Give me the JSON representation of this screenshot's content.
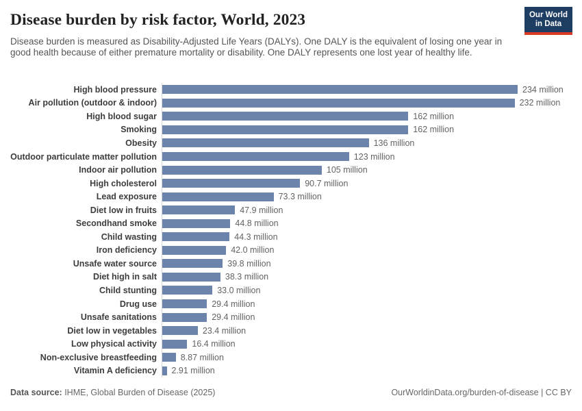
{
  "header": {
    "title": "Disease burden by risk factor, World, 2023",
    "subtitle": "Disease burden is measured as Disability-Adjusted Life Years (DALYs). One DALY is the equivalent of losing one year in good health because of either premature mortality or disability. One DALY represents one lost year of healthy life.",
    "logo": {
      "line1": "Our World",
      "line2": "in Data"
    }
  },
  "chart_data": {
    "type": "bar",
    "orientation": "horizontal",
    "title": "Disease burden by risk factor, World, 2023",
    "unit": "DALYs (million)",
    "xlim": [
      0,
      234
    ],
    "grid": false,
    "legend": "none",
    "categories": [
      "High blood pressure",
      "Air pollution (outdoor & indoor)",
      "High blood sugar",
      "Smoking",
      "Obesity",
      "Outdoor particulate matter pollution",
      "Indoor air pollution",
      "High cholesterol",
      "Lead exposure",
      "Diet low in fruits",
      "Secondhand smoke",
      "Child wasting",
      "Iron deficiency",
      "Unsafe water source",
      "Diet high in salt",
      "Child stunting",
      "Drug use",
      "Unsafe sanitations",
      "Diet low in vegetables",
      "Low physical activity",
      "Non-exclusive breastfeeding",
      "Vitamin A deficiency"
    ],
    "values": [
      234,
      232,
      162,
      162,
      136,
      123,
      105,
      90.7,
      73.3,
      47.9,
      44.8,
      44.3,
      42.0,
      39.8,
      38.3,
      33.0,
      29.4,
      29.4,
      23.4,
      16.4,
      8.87,
      2.91
    ],
    "value_labels": [
      "234 million",
      "232 million",
      "162 million",
      "162 million",
      "136 million",
      "123 million",
      "105 million",
      "90.7 million",
      "73.3 million",
      "47.9 million",
      "44.8 million",
      "44.3 million",
      "42.0 million",
      "39.8 million",
      "38.3 million",
      "33.0 million",
      "29.4 million",
      "29.4 million",
      "23.4 million",
      "16.4 million",
      "8.87 million",
      "2.91 million"
    ]
  },
  "footer": {
    "source_label": "Data source:",
    "source_text": " IHME, Global Burden of Disease (2025)",
    "credit": "OurWorldinData.org/burden-of-disease | CC BY"
  },
  "colors": {
    "bar": "#6c84ac",
    "category_label": "#3d3d3d",
    "value_label": "#636363",
    "subtitle": "#555555",
    "axis_line": "#d4d4d4",
    "logo_navy": "#1d3d63",
    "logo_red": "#dc3b23"
  }
}
